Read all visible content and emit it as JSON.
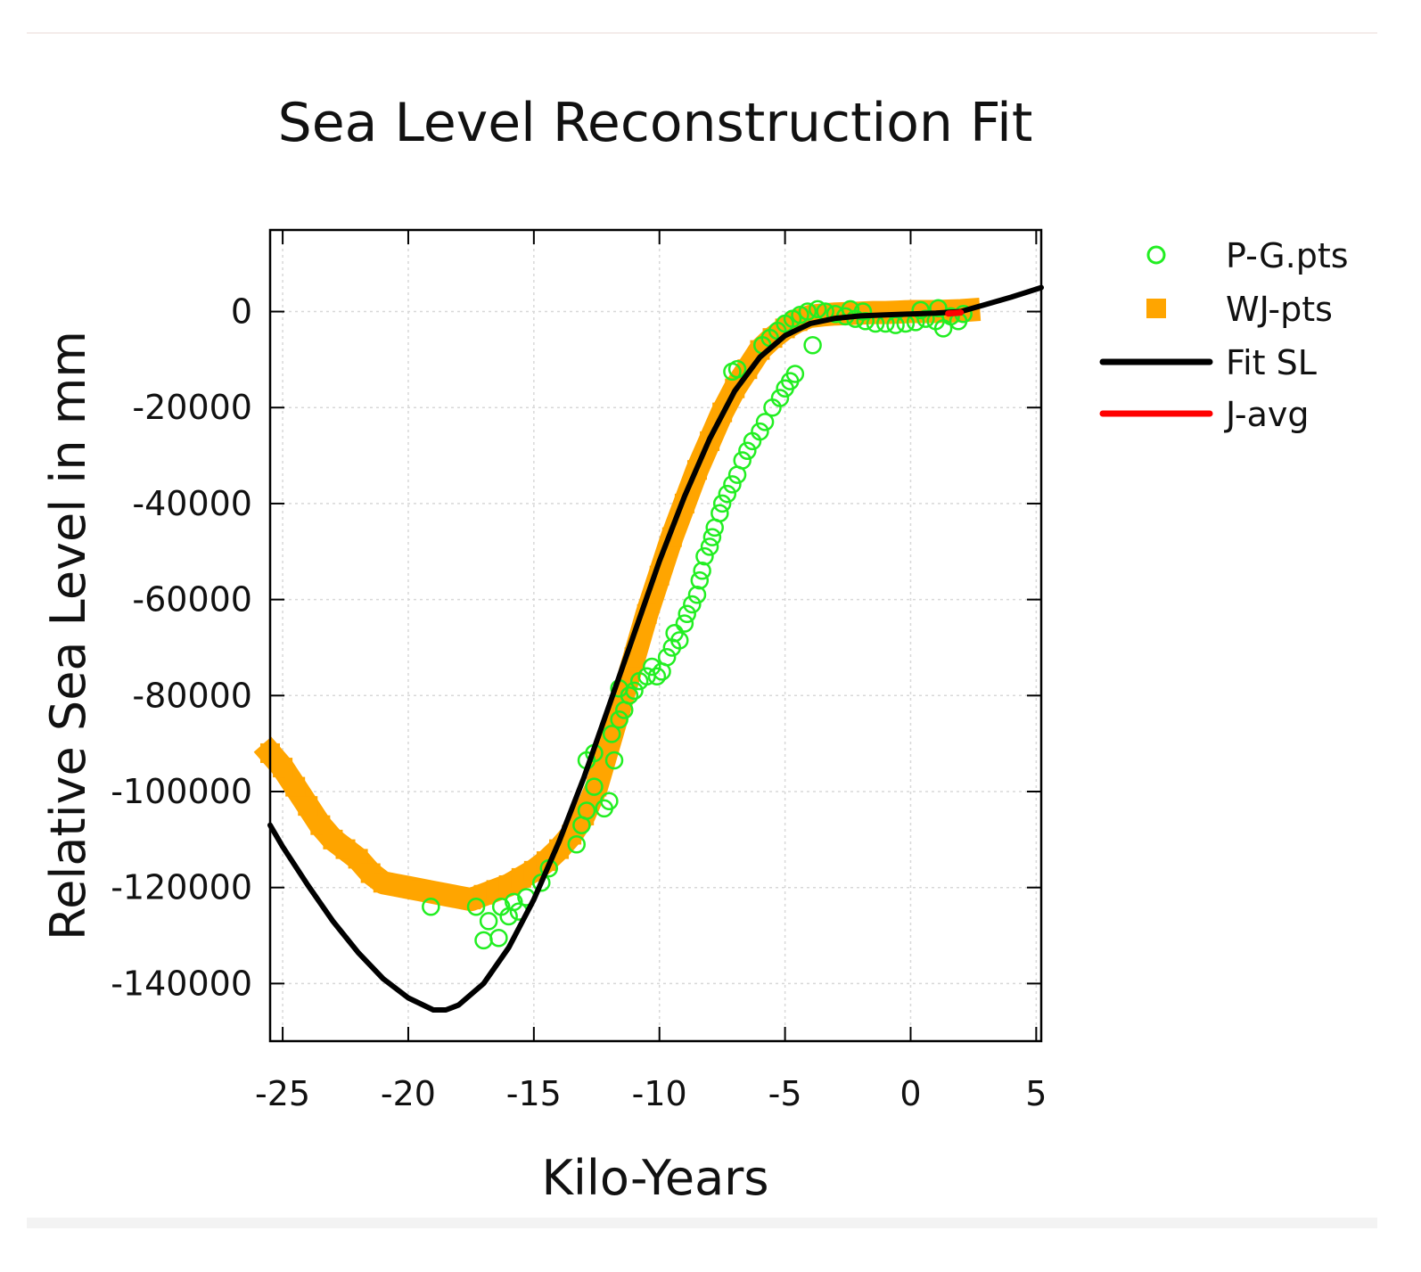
{
  "chart_data": {
    "type": "scatter",
    "title": "Sea Level Reconstruction Fit",
    "xlabel": "Kilo-Years",
    "ylabel": "Relative Sea Level in mm",
    "xlim": [
      -25.5,
      5.2
    ],
    "ylim": [
      -152000,
      17000
    ],
    "xticks": [
      -25,
      -20,
      -15,
      -10,
      -5,
      0,
      5
    ],
    "yticks": [
      0,
      -20000,
      -40000,
      -60000,
      -80000,
      -100000,
      -120000,
      -140000
    ],
    "grid": true,
    "legend_position": "outside-top-right",
    "series": [
      {
        "name": "P-G.pts",
        "kind": "scatter-hollow-circle",
        "color": "#22ee22",
        "points": [
          [
            -19.1,
            -124000
          ],
          [
            -17.3,
            -124000
          ],
          [
            -17.0,
            -131000
          ],
          [
            -16.8,
            -127000
          ],
          [
            -16.4,
            -130500
          ],
          [
            -16.3,
            -124000
          ],
          [
            -16.0,
            -126000
          ],
          [
            -15.8,
            -123000
          ],
          [
            -15.6,
            -125000
          ],
          [
            -15.3,
            -122000
          ],
          [
            -14.7,
            -119000
          ],
          [
            -14.4,
            -116000
          ],
          [
            -13.3,
            -111000
          ],
          [
            -13.1,
            -107000
          ],
          [
            -12.9,
            -104000
          ],
          [
            -12.6,
            -99000
          ],
          [
            -12.9,
            -93500
          ],
          [
            -12.6,
            -92000
          ],
          [
            -12.2,
            -103500
          ],
          [
            -12.0,
            -102000
          ],
          [
            -11.8,
            -93500
          ],
          [
            -11.9,
            -88000
          ],
          [
            -11.6,
            -85000
          ],
          [
            -11.4,
            -83000
          ],
          [
            -11.2,
            -80000
          ],
          [
            -11.6,
            -78500
          ],
          [
            -11.0,
            -79000
          ],
          [
            -10.8,
            -77000
          ],
          [
            -10.5,
            -76000
          ],
          [
            -10.3,
            -74000
          ],
          [
            -10.1,
            -76000
          ],
          [
            -9.9,
            -75000
          ],
          [
            -9.7,
            -72000
          ],
          [
            -9.5,
            -70000
          ],
          [
            -9.4,
            -67000
          ],
          [
            -9.2,
            -68500
          ],
          [
            -9.0,
            -65000
          ],
          [
            -8.9,
            -63000
          ],
          [
            -8.7,
            -61000
          ],
          [
            -8.5,
            -59000
          ],
          [
            -8.4,
            -56000
          ],
          [
            -8.3,
            -54000
          ],
          [
            -8.2,
            -51000
          ],
          [
            -8.0,
            -49000
          ],
          [
            -7.9,
            -47000
          ],
          [
            -7.8,
            -45000
          ],
          [
            -7.6,
            -42000
          ],
          [
            -7.5,
            -40000
          ],
          [
            -7.3,
            -38000
          ],
          [
            -7.1,
            -36000
          ],
          [
            -6.9,
            -34000
          ],
          [
            -6.7,
            -31000
          ],
          [
            -6.5,
            -29000
          ],
          [
            -6.3,
            -27000
          ],
          [
            -6.0,
            -25000
          ],
          [
            -5.8,
            -23000
          ],
          [
            -5.5,
            -20000
          ],
          [
            -5.2,
            -18000
          ],
          [
            -5.0,
            -16000
          ],
          [
            -4.8,
            -14500
          ],
          [
            -4.6,
            -13000
          ],
          [
            -7.1,
            -12500
          ],
          [
            -6.9,
            -12000
          ],
          [
            -5.9,
            -7000
          ],
          [
            -5.6,
            -5500
          ],
          [
            -5.3,
            -4000
          ],
          [
            -5.0,
            -2500
          ],
          [
            -4.7,
            -1500
          ],
          [
            -4.4,
            -700
          ],
          [
            -4.1,
            0
          ],
          [
            -3.7,
            500
          ],
          [
            -3.4,
            0
          ],
          [
            -3.0,
            -500
          ],
          [
            -3.9,
            -7000
          ],
          [
            -2.6,
            -1000
          ],
          [
            -2.2,
            -1500
          ],
          [
            -1.8,
            -2000
          ],
          [
            -1.4,
            -2500
          ],
          [
            -1.0,
            -2500
          ],
          [
            -0.6,
            -2800
          ],
          [
            -0.2,
            -2500
          ],
          [
            0.2,
            -2200
          ],
          [
            0.6,
            -1500
          ],
          [
            1.0,
            -2000
          ],
          [
            1.3,
            -3500
          ],
          [
            1.6,
            -1000
          ],
          [
            1.9,
            -2000
          ],
          [
            2.1,
            -500
          ],
          [
            -2.4,
            500
          ],
          [
            -1.9,
            0
          ],
          [
            0.4,
            300
          ],
          [
            1.1,
            700
          ]
        ]
      },
      {
        "name": "WJ-pts",
        "kind": "scatter-filled-square-band",
        "color": "#ffa500",
        "points": [
          [
            -25.5,
            -92000
          ],
          [
            -25.0,
            -95000
          ],
          [
            -24.5,
            -99000
          ],
          [
            -24.0,
            -103000
          ],
          [
            -23.5,
            -107000
          ],
          [
            -23.0,
            -110000
          ],
          [
            -22.5,
            -112000
          ],
          [
            -22.0,
            -114000
          ],
          [
            -21.5,
            -117000
          ],
          [
            -21.0,
            -119000
          ],
          [
            -20.5,
            -119500
          ],
          [
            -20.0,
            -120000
          ],
          [
            -19.5,
            -120500
          ],
          [
            -19.0,
            -121000
          ],
          [
            -18.5,
            -121500
          ],
          [
            -18.0,
            -122000
          ],
          [
            -17.5,
            -122500
          ],
          [
            -17.0,
            -121500
          ],
          [
            -16.5,
            -120500
          ],
          [
            -16.0,
            -119500
          ],
          [
            -15.5,
            -118000
          ],
          [
            -15.0,
            -116500
          ],
          [
            -14.5,
            -114500
          ],
          [
            -14.0,
            -112000
          ],
          [
            -13.5,
            -109000
          ],
          [
            -13.0,
            -105000
          ],
          [
            -12.5,
            -99000
          ],
          [
            -12.0,
            -90000
          ],
          [
            -11.5,
            -81000
          ],
          [
            -11.0,
            -72000
          ],
          [
            -10.5,
            -63000
          ],
          [
            -10.0,
            -55000
          ],
          [
            -9.5,
            -47000
          ],
          [
            -9.0,
            -40000
          ],
          [
            -8.5,
            -33000
          ],
          [
            -8.0,
            -27000
          ],
          [
            -7.5,
            -21000
          ],
          [
            -7.0,
            -16000
          ],
          [
            -6.5,
            -12000
          ],
          [
            -6.0,
            -8000
          ],
          [
            -5.5,
            -5500
          ],
          [
            -5.0,
            -3500
          ],
          [
            -4.5,
            -2000
          ],
          [
            -4.0,
            -1000
          ],
          [
            -3.5,
            -700
          ],
          [
            -3.0,
            -500
          ],
          [
            -2.5,
            -400
          ],
          [
            -2.0,
            -300
          ],
          [
            -1.5,
            -200
          ],
          [
            -1.0,
            -200
          ],
          [
            -0.5,
            -100
          ],
          [
            0.0,
            0
          ],
          [
            0.5,
            0
          ],
          [
            1.0,
            0
          ],
          [
            1.5,
            100
          ],
          [
            2.0,
            200
          ],
          [
            2.3,
            300
          ]
        ]
      },
      {
        "name": "Fit SL",
        "kind": "line",
        "color": "#000000",
        "points": [
          [
            -25.5,
            -107000
          ],
          [
            -25.0,
            -111500
          ],
          [
            -24.0,
            -119500
          ],
          [
            -23.0,
            -127000
          ],
          [
            -22.0,
            -133500
          ],
          [
            -21.0,
            -139000
          ],
          [
            -20.0,
            -143000
          ],
          [
            -19.0,
            -145500
          ],
          [
            -18.5,
            -145500
          ],
          [
            -18.0,
            -144500
          ],
          [
            -17.0,
            -140000
          ],
          [
            -16.0,
            -132500
          ],
          [
            -15.0,
            -122500
          ],
          [
            -14.0,
            -110500
          ],
          [
            -13.0,
            -97000
          ],
          [
            -12.0,
            -82000
          ],
          [
            -11.0,
            -67000
          ],
          [
            -10.0,
            -52000
          ],
          [
            -9.0,
            -38500
          ],
          [
            -8.0,
            -26500
          ],
          [
            -7.0,
            -16500
          ],
          [
            -6.0,
            -9500
          ],
          [
            -5.0,
            -5000
          ],
          [
            -4.0,
            -2500
          ],
          [
            -3.0,
            -1400
          ],
          [
            -2.0,
            -900
          ],
          [
            -1.0,
            -700
          ],
          [
            0.0,
            -500
          ],
          [
            1.0,
            -300
          ],
          [
            2.0,
            0
          ],
          [
            3.0,
            1500
          ],
          [
            4.0,
            3000
          ],
          [
            5.2,
            5000
          ]
        ]
      },
      {
        "name": "J-avg",
        "kind": "line",
        "color": "#ff0000",
        "points": [
          [
            1.5,
            -400
          ],
          [
            2.0,
            -200
          ]
        ]
      }
    ]
  }
}
